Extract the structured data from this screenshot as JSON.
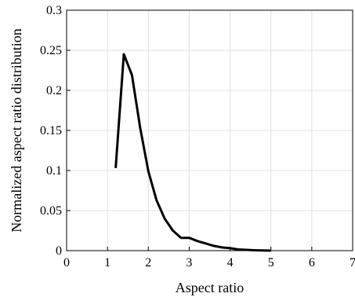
{
  "chart_data": {
    "type": "line",
    "xlabel": "Aspect ratio",
    "ylabel": "Normalized aspect ratio distribution",
    "xlim": [
      0,
      7
    ],
    "ylim": [
      0,
      0.3
    ],
    "xticks": [
      0,
      1,
      2,
      3,
      4,
      5,
      6,
      7
    ],
    "yticks": [
      0,
      0.05,
      0.1,
      0.15,
      0.2,
      0.25,
      0.3
    ],
    "xtick_labels": [
      "0",
      "1",
      "2",
      "3",
      "4",
      "5",
      "6",
      "7"
    ],
    "ytick_labels": [
      "0",
      "0.05",
      "0.1",
      "0.15",
      "0.2",
      "0.25",
      "0.3"
    ],
    "grid": true,
    "line_color": "#000000",
    "series": [
      {
        "x": [
          1.2,
          1.4,
          1.6,
          1.8,
          2.0,
          2.2,
          2.4,
          2.6,
          2.8,
          3.0,
          3.2,
          3.4,
          3.6,
          3.8,
          4.0,
          4.2,
          4.4,
          4.6,
          4.8,
          5.0
        ],
        "y": [
          0.103,
          0.245,
          0.219,
          0.153,
          0.099,
          0.063,
          0.04,
          0.025,
          0.016,
          0.016,
          0.012,
          0.009,
          0.006,
          0.004,
          0.003,
          0.0015,
          0.001,
          0.0005,
          0.0002,
          0.0
        ]
      }
    ]
  }
}
